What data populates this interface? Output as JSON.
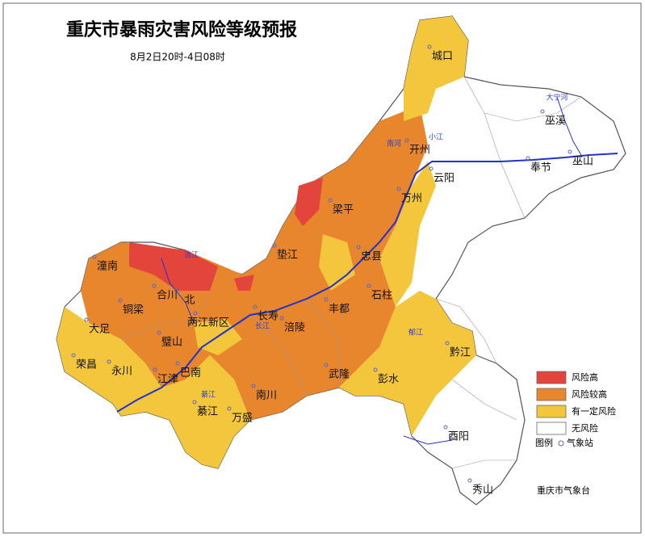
{
  "title": "重庆市暴雨灾害风险等级预报",
  "subtitle": "8月2日20时-4日08时",
  "legend": {
    "items": [
      {
        "label": "风险高",
        "color": "#e3443c"
      },
      {
        "label": "风险较高",
        "color": "#e8862e"
      },
      {
        "label": "有一定风险",
        "color": "#f4c63c"
      },
      {
        "label": "无风险",
        "color": "#ffffff"
      }
    ],
    "key_label": "图例",
    "station_label": "气象站"
  },
  "places": [
    "城口",
    "开州",
    "云阳",
    "巫溪",
    "奉节",
    "巫山",
    "万州",
    "梁平",
    "垫江",
    "忠县",
    "石柱",
    "潼南",
    "合川",
    "北",
    "铜梁",
    "大足",
    "两江新区",
    "璧山",
    "荣昌",
    "永川",
    "江津",
    "巴南",
    "长寿",
    "涪陵",
    "丰都",
    "武隆",
    "彭水",
    "黔江",
    "南川",
    "綦江",
    "万盛",
    "酉阳",
    "秀山"
  ],
  "rivers": [
    "大宁河",
    "南河",
    "小江",
    "涪江",
    "长江",
    "郁江",
    "綦江"
  ],
  "source": "重庆市气象台"
}
